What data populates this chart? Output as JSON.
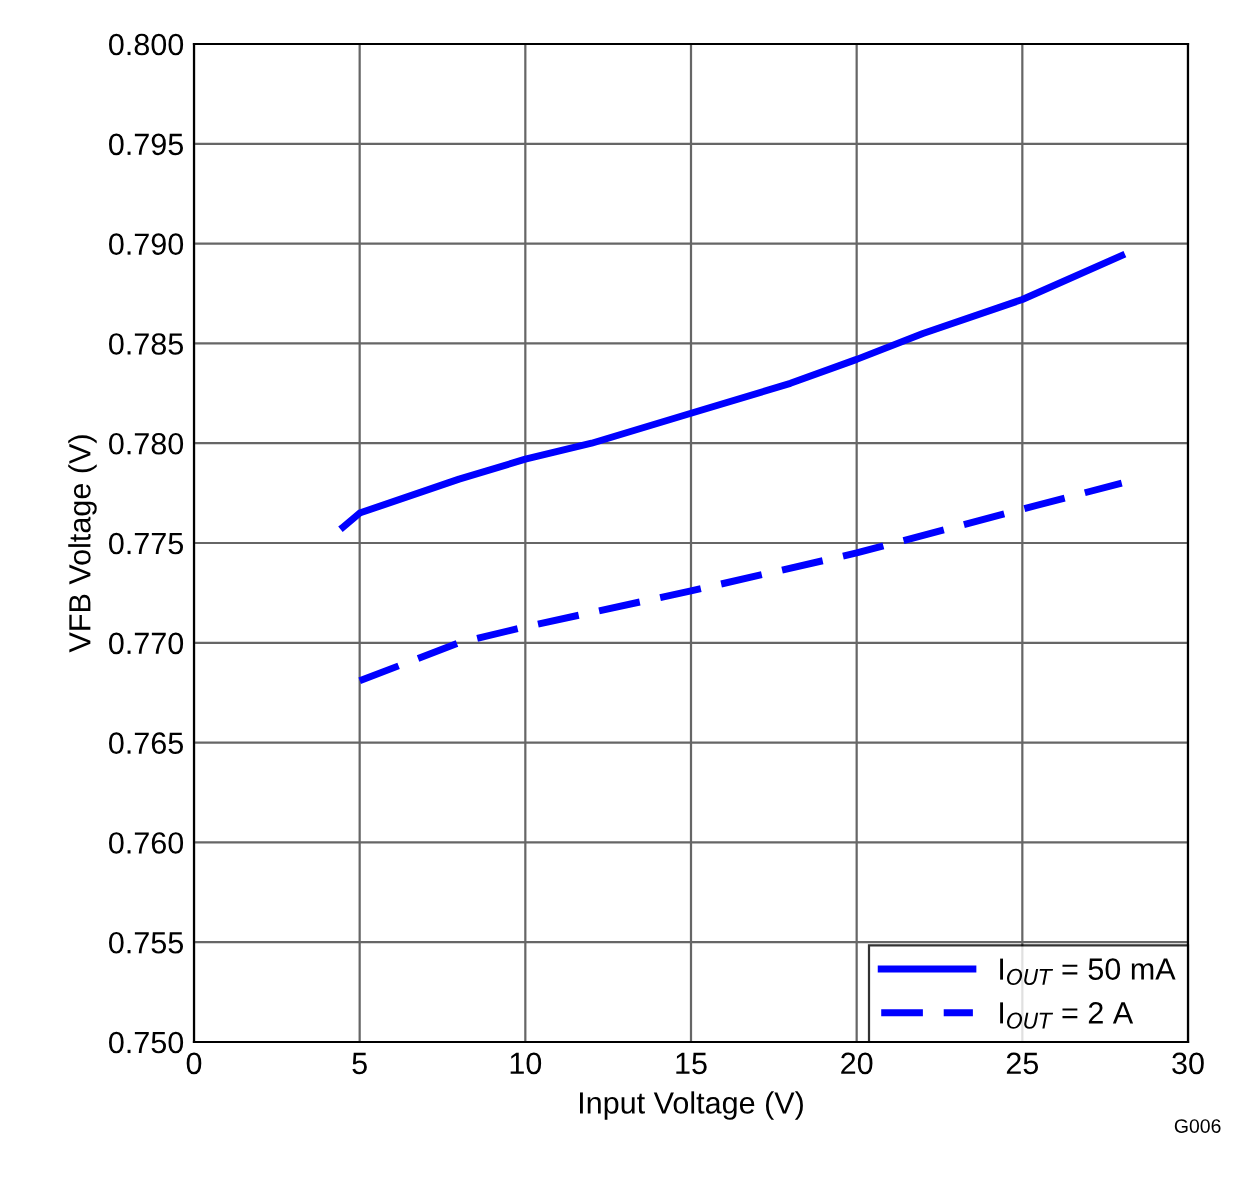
{
  "chart_data": {
    "type": "line",
    "xlabel": "Input Voltage (V)",
    "ylabel": "VFB Voltage (V)",
    "xlim": [
      0,
      30
    ],
    "xticks": [
      0,
      5,
      10,
      15,
      20,
      25,
      30
    ],
    "ylim": [
      0.75,
      0.8
    ],
    "yticks": [
      {
        "value": 0.75,
        "label": "0.750"
      },
      {
        "value": 0.755,
        "label": "0.755"
      },
      {
        "value": 0.76,
        "label": "0.760"
      },
      {
        "value": 0.765,
        "label": "0.765"
      },
      {
        "value": 0.77,
        "label": "0.770"
      },
      {
        "value": 0.775,
        "label": "0.775"
      },
      {
        "value": 0.78,
        "label": "0.780"
      },
      {
        "value": 0.785,
        "label": "0.785"
      },
      {
        "value": 0.79,
        "label": "0.790"
      },
      {
        "value": 0.795,
        "label": "0.795"
      },
      {
        "value": 0.8,
        "label": "0.800"
      }
    ],
    "series": [
      {
        "name": "I$_{OUT}$ = 50 mA",
        "color": "#0000ff",
        "line_style": "solid",
        "x": [
          4.5,
          5,
          8,
          10,
          12,
          15,
          18,
          20,
          22,
          25,
          28
        ],
        "values": [
          0.7758,
          0.7765,
          0.7782,
          0.7792,
          0.78,
          0.7815,
          0.783,
          0.7842,
          0.7855,
          0.7872,
          0.7894
        ]
      },
      {
        "name": "I$_{OUT}$ = 2 A",
        "color": "#0000ff",
        "line_style": "dashed",
        "x": [
          5,
          8,
          10,
          15,
          20,
          25,
          28
        ],
        "values": [
          0.7681,
          0.77,
          0.7708,
          0.7726,
          0.7745,
          0.7767,
          0.778
        ]
      }
    ],
    "grid": true,
    "legend": "bottom right",
    "marker": "none",
    "annotations": [
      "G006"
    ]
  }
}
